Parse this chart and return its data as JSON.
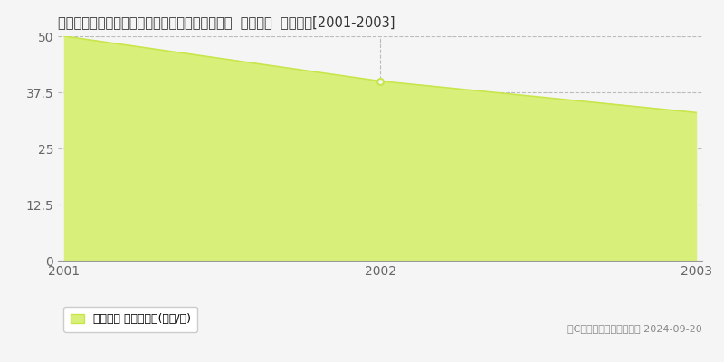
{
  "title": "愛知県知多郡南知多町大字内海字中浜田６番５外  公示地価  地価推移[2001-2003]",
  "years": [
    2001,
    2002,
    2003
  ],
  "values": [
    50,
    40,
    33
  ],
  "ylim": [
    0,
    50
  ],
  "yticks": [
    0,
    12.5,
    25,
    37.5,
    50
  ],
  "line_color": "#c8e64c",
  "fill_color": "#d8f07a",
  "marker_color": "#c8e64c",
  "bg_color": "#f5f5f5",
  "plot_bg_color": "#f5f5f5",
  "grid_color": "#bbbbbb",
  "title_fontsize": 10.5,
  "legend_label": "公示地価 平均坪単価(万円/坪)",
  "copyright_text": "（C）土地価格ドットコム 2024-09-20",
  "xlabel_color": "#666666",
  "ylabel_color": "#666666"
}
